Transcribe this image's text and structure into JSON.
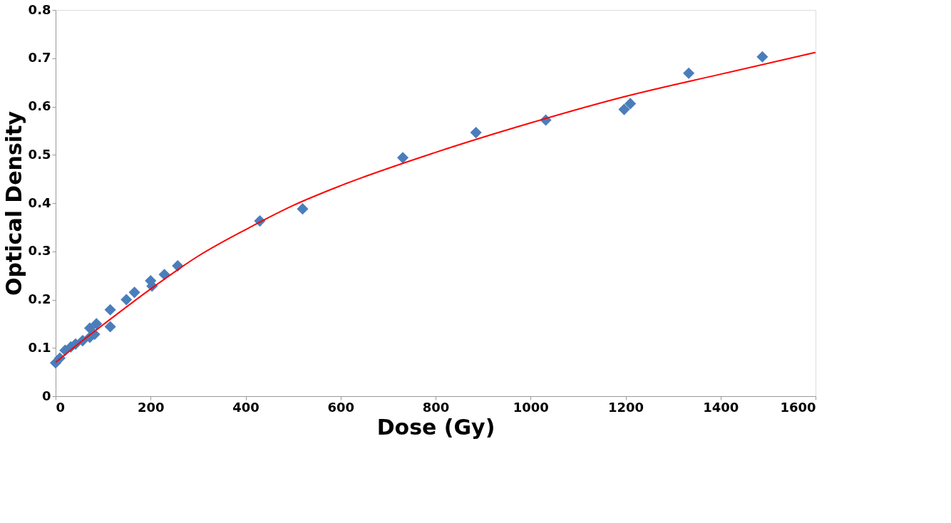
{
  "chart_data": {
    "type": "scatter",
    "xlabel": "Dose (Gy)",
    "ylabel": "Optical Density",
    "xlim": [
      0,
      1600
    ],
    "xticks": [
      0,
      200,
      400,
      600,
      800,
      1000,
      1200,
      1400,
      1600
    ],
    "ylim": [
      0,
      0.8
    ],
    "yticks": [
      0,
      0.1,
      0.2,
      0.3,
      0.4,
      0.5,
      0.6,
      0.7,
      0.8
    ],
    "grid": false,
    "series": [
      {
        "color": "#4a7ebb",
        "marker": "diamond",
        "x": [
          0,
          9,
          20,
          32,
          42,
          57,
          72,
          72,
          82,
          86,
          115,
          115,
          149,
          166,
          200,
          203,
          229,
          257,
          430,
          520,
          731,
          885,
          1032,
          1197,
          1210,
          1333,
          1488
        ],
        "values": [
          0.069,
          0.079,
          0.095,
          0.102,
          0.108,
          0.115,
          0.141,
          0.122,
          0.128,
          0.15,
          0.144,
          0.179,
          0.2,
          0.215,
          0.239,
          0.228,
          0.252,
          0.27,
          0.363,
          0.388,
          0.494,
          0.546,
          0.572,
          0.594,
          0.606,
          0.669,
          0.703
        ]
      },
      {
        "type": "line",
        "color": "#ff0000",
        "marker": "none",
        "line_style": "solid",
        "x": [
          0,
          50,
          100,
          200,
          300,
          400,
          500,
          600,
          800,
          1000,
          1200,
          1400,
          1600
        ],
        "values": [
          0.07,
          0.11,
          0.148,
          0.222,
          0.29,
          0.345,
          0.395,
          0.436,
          0.505,
          0.566,
          0.621,
          0.667,
          0.712
        ]
      }
    ]
  }
}
